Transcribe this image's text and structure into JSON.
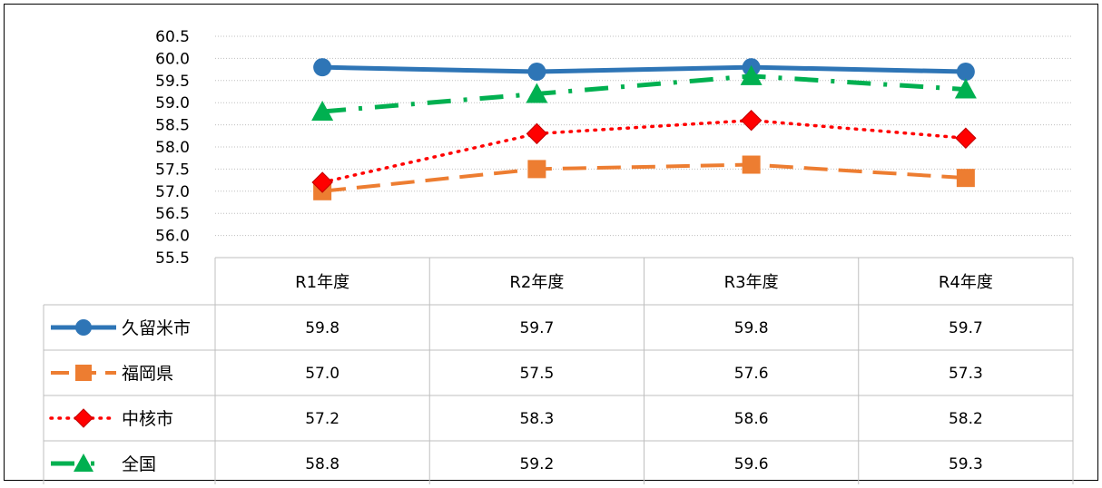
{
  "chart_data": {
    "type": "line",
    "title": "",
    "xlabel": "",
    "ylabel": "",
    "ylim": [
      55.5,
      60.5
    ],
    "ytick_step": 0.5,
    "yticks": [
      "55.5",
      "56.0",
      "56.5",
      "57.0",
      "57.5",
      "58.0",
      "58.5",
      "59.0",
      "59.5",
      "60.0",
      "60.5"
    ],
    "grid": true,
    "legend": "data-table-left",
    "categories": [
      "R1年度",
      "R2年度",
      "R3年度",
      "R4年度"
    ],
    "series": [
      {
        "name": "久留米市",
        "values": [
          59.8,
          59.7,
          59.8,
          59.7
        ],
        "display": [
          "59.8",
          "59.7",
          "59.8",
          "59.7"
        ],
        "color": "#2E75B6",
        "marker": "circle",
        "dash": "solid"
      },
      {
        "name": "福岡県",
        "values": [
          57.0,
          57.5,
          57.6,
          57.3
        ],
        "display": [
          "57.0",
          "57.5",
          "57.6",
          "57.3"
        ],
        "color": "#ED7D31",
        "marker": "square",
        "dash": "dash"
      },
      {
        "name": "中核市",
        "values": [
          57.2,
          58.3,
          58.6,
          58.2
        ],
        "display": [
          "57.2",
          "58.3",
          "58.6",
          "58.2"
        ],
        "color": "#FF0000",
        "marker": "diamond",
        "dash": "dot"
      },
      {
        "name": "全国",
        "values": [
          58.8,
          59.2,
          59.6,
          59.3
        ],
        "display": [
          "58.8",
          "59.2",
          "59.6",
          "59.3"
        ],
        "color": "#00B050",
        "marker": "triangle",
        "dash": "dashdot"
      }
    ]
  }
}
